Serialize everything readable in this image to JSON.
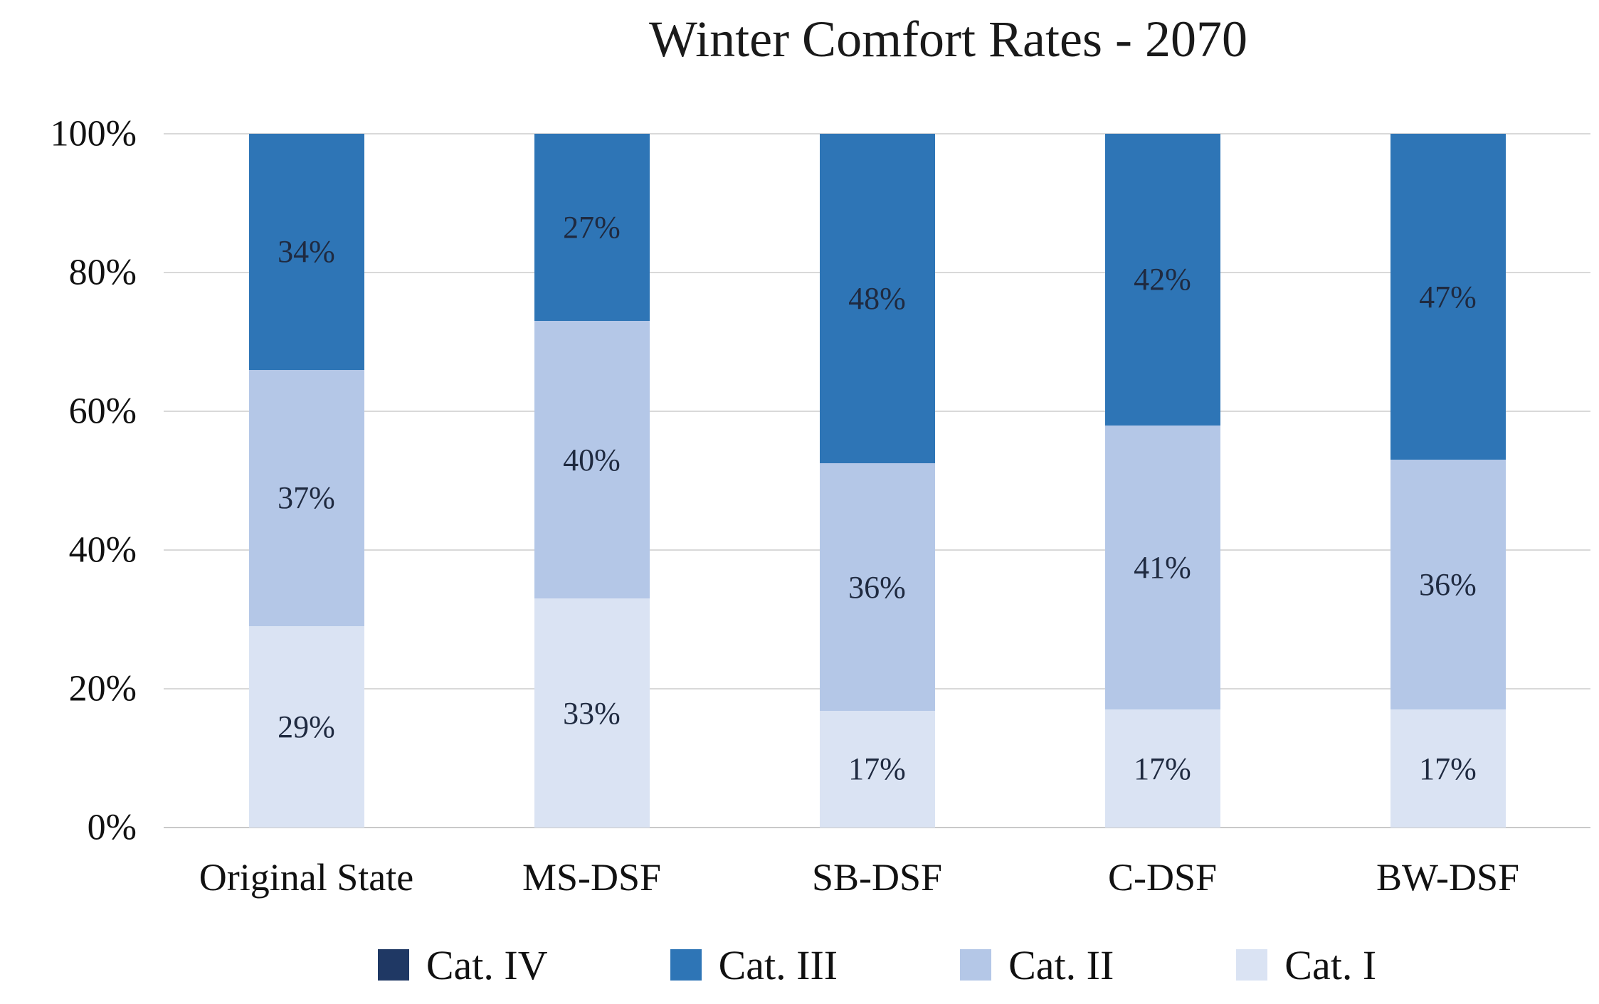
{
  "title": "Winter Comfort Rates - 2070",
  "colors": {
    "cat_iv": "#1F3864",
    "cat_iii": "#2E75B6",
    "cat_ii": "#B4C7E7",
    "cat_i": "#DAE3F3",
    "gridline": "#D9D9D9",
    "data_label": "#1F2A40",
    "text": "#111111"
  },
  "chart_data": {
    "type": "bar",
    "stacked": true,
    "orientation": "vertical",
    "title": "Winter Comfort Rates - 2070",
    "categories": [
      "Original State",
      "MS-DSF",
      "SB-DSF",
      "C-DSF",
      "BW-DSF"
    ],
    "series": [
      {
        "name": "Cat. I",
        "color": "#DAE3F3",
        "values": [
          29,
          33,
          17,
          17,
          17
        ]
      },
      {
        "name": "Cat. II",
        "color": "#B4C7E7",
        "values": [
          37,
          40,
          36,
          41,
          36
        ]
      },
      {
        "name": "Cat. III",
        "color": "#2E75B6",
        "values": [
          34,
          27,
          48,
          42,
          47
        ]
      },
      {
        "name": "Cat. IV",
        "color": "#1F3864",
        "values": [
          0,
          0,
          0,
          0,
          0
        ]
      }
    ],
    "data_labels": [
      {
        "series": "Cat. I",
        "labels": [
          "29%",
          "33%",
          "17%",
          "17%",
          "17%"
        ]
      },
      {
        "series": "Cat. II",
        "labels": [
          "37%",
          "40%",
          "36%",
          "41%",
          "36%"
        ]
      },
      {
        "series": "Cat. III",
        "labels": [
          "34%",
          "27%",
          "48%",
          "42%",
          "47%"
        ]
      },
      {
        "series": "Cat. IV",
        "labels": [
          "",
          "",
          "",
          "",
          ""
        ]
      }
    ],
    "xlabel": "",
    "ylabel": "",
    "ylim": [
      0,
      100
    ],
    "y_ticks": [
      {
        "value": 0,
        "label": "0%"
      },
      {
        "value": 20,
        "label": "20%"
      },
      {
        "value": 40,
        "label": "40%"
      },
      {
        "value": 60,
        "label": "60%"
      },
      {
        "value": 80,
        "label": "80%"
      },
      {
        "value": 100,
        "label": "100%"
      }
    ],
    "grid": true,
    "legend_position": "bottom",
    "legend_order": [
      "Cat. IV",
      "Cat. III",
      "Cat. II",
      "Cat. I"
    ]
  }
}
